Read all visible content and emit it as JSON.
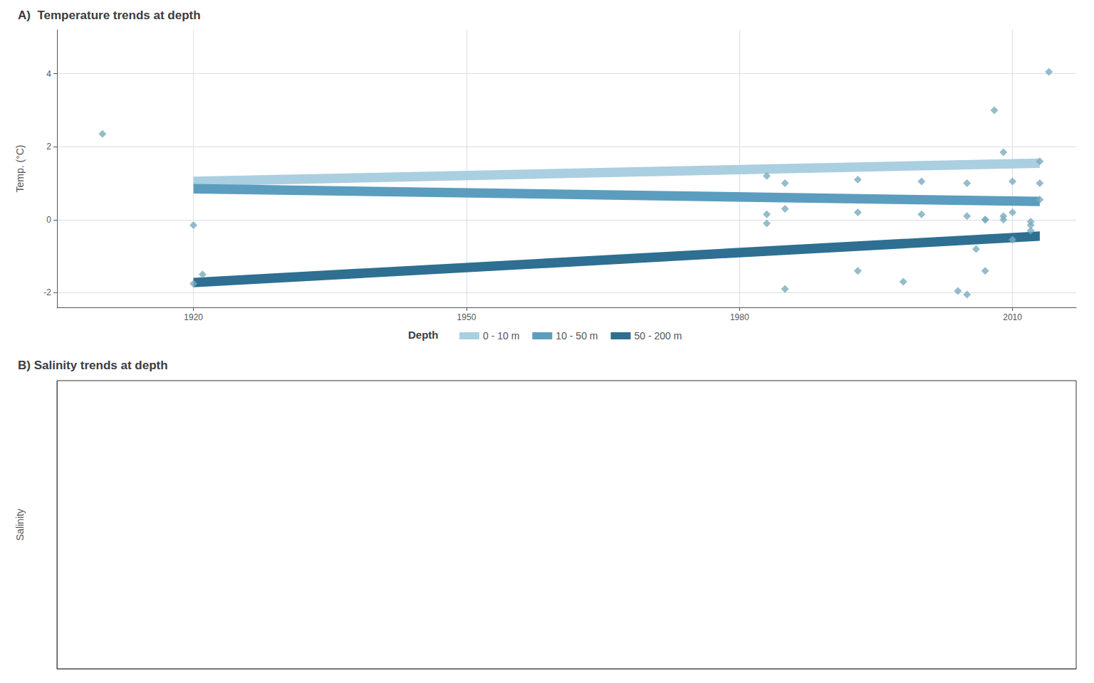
{
  "chart_data": [
    {
      "type": "line",
      "title": "A)  Temperature trends at depth",
      "ylabel": "Temp. (°C)",
      "xlim": [
        1905,
        2017
      ],
      "xticks": [
        1920,
        1950,
        1980,
        2010
      ],
      "ylim": [
        -2.4,
        5.2
      ],
      "yticks": [
        -2,
        0,
        2,
        4
      ],
      "grid": true,
      "legend_title": "Depth",
      "series": [
        {
          "name": "0 - 10 m",
          "type": "band",
          "color": "#aacfe0",
          "x": [
            1920,
            2013
          ],
          "lower": [
            0.92,
            1.42
          ],
          "upper": [
            1.18,
            1.68
          ]
        },
        {
          "name": "10 - 50 m",
          "type": "band",
          "color": "#5b9dbf",
          "x": [
            1920,
            2013
          ],
          "lower": [
            0.72,
            0.37
          ],
          "upper": [
            0.98,
            0.63
          ]
        },
        {
          "name": "50 - 200 m",
          "type": "band",
          "color": "#2e6f92",
          "x": [
            1920,
            2013
          ],
          "lower": [
            -1.85,
            -0.58
          ],
          "upper": [
            -1.59,
            -0.32
          ]
        },
        {
          "type": "scatter",
          "marker": "diamond",
          "color": "#7aabbe",
          "x": [
            1910,
            1983,
            1985,
            1993,
            2000,
            2005,
            2007,
            2009,
            2010,
            2012,
            2013
          ],
          "values": [
            2.35,
            1.2,
            1.0,
            1.1,
            1.05,
            1.0,
            0.0,
            0.0,
            1.05,
            -0.15,
            1.6
          ]
        },
        {
          "type": "scatter",
          "marker": "diamond",
          "color": "#7aabbe",
          "x": [
            1920,
            1983,
            1985,
            1993,
            2000,
            2005,
            2007,
            2009,
            2010,
            2012,
            2013
          ],
          "values": [
            -0.15,
            0.15,
            0.3,
            0.2,
            0.15,
            0.1,
            0.0,
            0.1,
            0.2,
            -0.05,
            0.55
          ]
        },
        {
          "type": "scatter",
          "marker": "diamond",
          "color": "#7aabbe",
          "x": [
            1920,
            1921,
            1983,
            1985,
            1993,
            1998,
            2004,
            2005,
            2006,
            2007,
            2008,
            2009,
            2010,
            2012,
            2013,
            2014
          ],
          "values": [
            -1.75,
            -1.5,
            -0.1,
            -1.9,
            -1.4,
            -1.7,
            -1.95,
            -2.05,
            -0.8,
            -1.4,
            3.0,
            1.85,
            -0.55,
            -0.3,
            1.0,
            4.05
          ]
        }
      ]
    },
    {
      "type": "line",
      "title": "B) Salinity trends at depth",
      "ylabel": "Salinity",
      "grid": false,
      "tick_labels": false,
      "series": []
    }
  ]
}
